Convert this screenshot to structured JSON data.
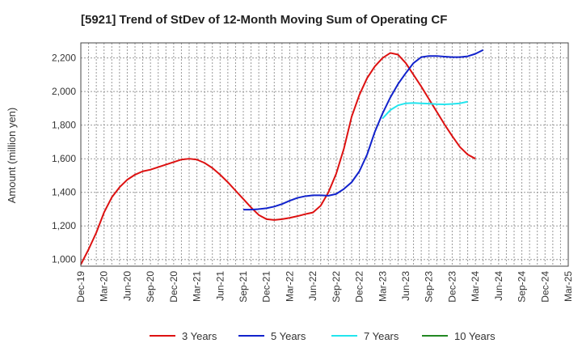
{
  "chart_data": {
    "type": "line",
    "title": "[5921]  Trend of StDev of 12-Month Moving Sum of Operating CF",
    "ylabel": "Amount (million yen)",
    "xlabel": "",
    "ylim": [
      960,
      2290
    ],
    "yticks": [
      1000,
      1200,
      1400,
      1600,
      1800,
      2000,
      2200
    ],
    "ytick_labels": [
      "1,000",
      "1,200",
      "1,400",
      "1,600",
      "1,800",
      "2,000",
      "2,200"
    ],
    "xtick_labels": [
      "Dec-19",
      "Mar-20",
      "Jun-20",
      "Sep-20",
      "Dec-20",
      "Mar-21",
      "Jun-21",
      "Sep-21",
      "Dec-21",
      "Mar-22",
      "Jun-22",
      "Sep-22",
      "Dec-22",
      "Mar-23",
      "Jun-23",
      "Sep-23",
      "Dec-23",
      "Mar-24",
      "Jun-24",
      "Sep-24",
      "Dec-24",
      "Mar-25"
    ],
    "grid": true,
    "legend_position": "bottom",
    "series": [
      {
        "name": "3 Years",
        "color": "#dd1111",
        "start_index": 0,
        "values": [
          970,
          1060,
          1160,
          1280,
          1370,
          1430,
          1475,
          1505,
          1525,
          1535,
          1550,
          1565,
          1580,
          1595,
          1600,
          1595,
          1575,
          1545,
          1505,
          1460,
          1410,
          1360,
          1310,
          1265,
          1240,
          1235,
          1240,
          1248,
          1258,
          1270,
          1280,
          1320,
          1400,
          1510,
          1660,
          1850,
          1980,
          2080,
          2150,
          2200,
          2230,
          2220,
          2170,
          2100,
          2030,
          1955,
          1880,
          1805,
          1735,
          1670,
          1625,
          1600
        ]
      },
      {
        "name": "5 Years",
        "color": "#1122cc",
        "start_index": 21,
        "values": [
          1297,
          1297,
          1300,
          1305,
          1315,
          1330,
          1350,
          1367,
          1377,
          1382,
          1382,
          1380,
          1390,
          1420,
          1460,
          1525,
          1625,
          1760,
          1870,
          1965,
          2045,
          2110,
          2170,
          2205,
          2212,
          2212,
          2208,
          2205,
          2205,
          2210,
          2225,
          2248
        ]
      },
      {
        "name": "7 Years",
        "color": "#22e5ee",
        "start_index": 39,
        "values": [
          1840,
          1890,
          1918,
          1930,
          1932,
          1930,
          1928,
          1925,
          1924,
          1926,
          1930,
          1940
        ]
      },
      {
        "name": "10 Years",
        "color": "#228822",
        "start_index": 0,
        "values": []
      }
    ]
  }
}
